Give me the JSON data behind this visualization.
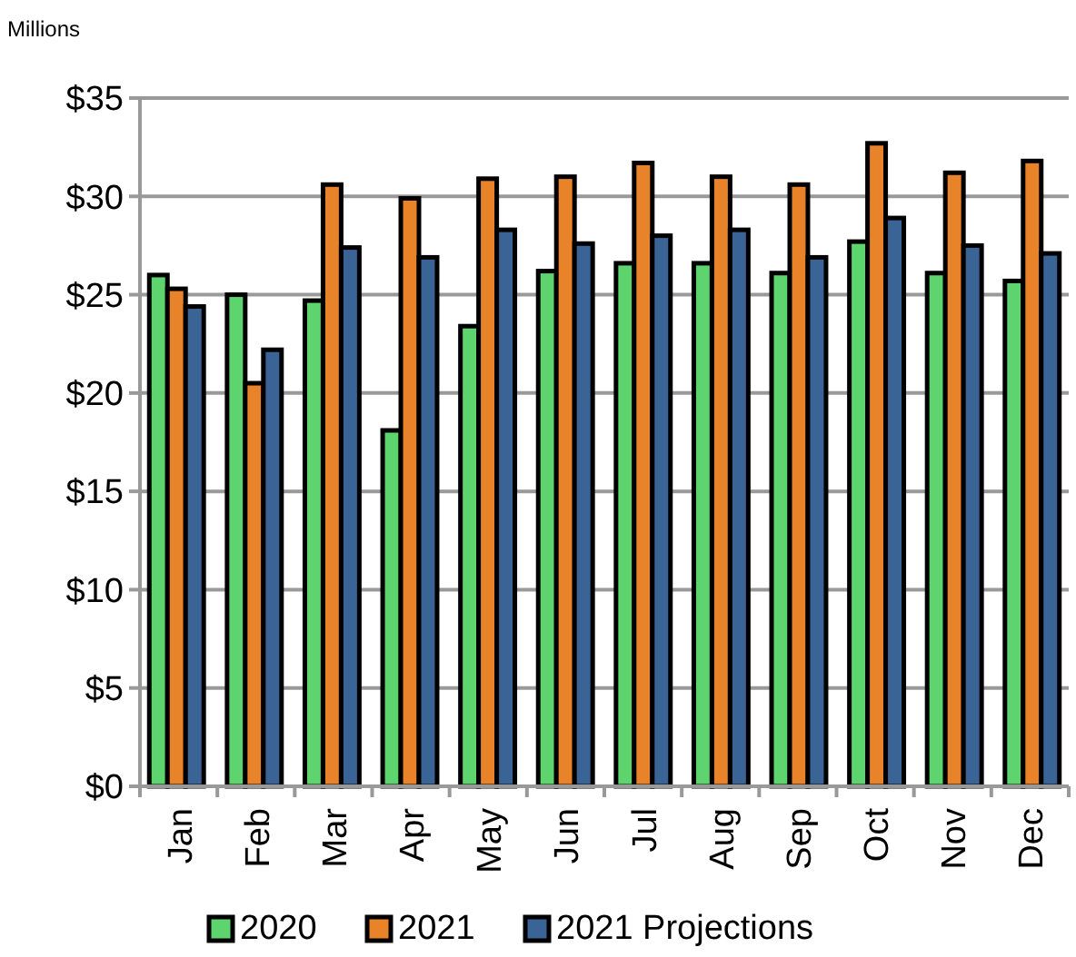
{
  "chart_data": {
    "type": "bar",
    "ylabel": "Millions",
    "categories": [
      "Jan",
      "Feb",
      "Mar",
      "Apr",
      "May",
      "Jun",
      "Jul",
      "Aug",
      "Sep",
      "Oct",
      "Nov",
      "Dec"
    ],
    "series": [
      {
        "name": "2020",
        "color": "#5ed46e",
        "values": [
          26,
          25,
          24.7,
          18.1,
          23.4,
          26.2,
          26.6,
          26.6,
          26.1,
          27.7,
          26.1,
          25.7
        ]
      },
      {
        "name": "2021",
        "color": "#e8832a",
        "values": [
          25.3,
          20.5,
          30.6,
          29.9,
          30.9,
          31,
          31.7,
          31,
          30.6,
          32.7,
          31.2,
          31.8
        ]
      },
      {
        "name": "2021 Projections",
        "color": "#3a6396",
        "values": [
          24.4,
          22.2,
          27.4,
          26.9,
          28.3,
          27.6,
          28,
          28.3,
          26.9,
          28.9,
          27.5,
          27.1
        ]
      }
    ],
    "ylim": [
      0,
      35
    ],
    "yticks": [
      {
        "value": 0,
        "label": "$0"
      },
      {
        "value": 5,
        "label": "$5"
      },
      {
        "value": 10,
        "label": "$10"
      },
      {
        "value": 15,
        "label": "$15"
      },
      {
        "value": 20,
        "label": "$20"
      },
      {
        "value": 25,
        "label": "$25"
      },
      {
        "value": 30,
        "label": "$30"
      },
      {
        "value": 35,
        "label": "$35"
      }
    ],
    "grid": "y",
    "legend": "bottom"
  }
}
